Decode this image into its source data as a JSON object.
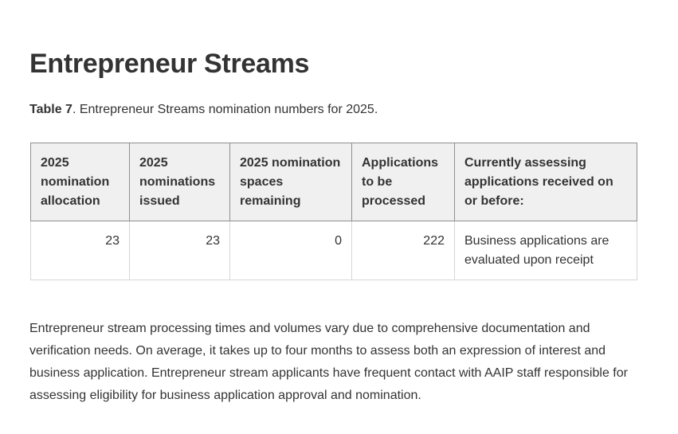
{
  "section": {
    "title": "Entrepreneur Streams",
    "caption_label": "Table 7",
    "caption_text": ". Entrepreneur Streams nomination numbers for 2025."
  },
  "table": {
    "headers": [
      "2025 nomination allocation",
      "2025 nominations issued",
      "2025 nomination spaces remaining",
      "Applications to be processed",
      "Currently assessing applications received on or before:"
    ],
    "rows": [
      [
        "23",
        "23",
        "0",
        "222",
        "Business applications are evaluated upon receipt"
      ]
    ]
  },
  "paragraph": "Entrepreneur stream processing times and volumes vary due to comprehensive documentation and verification needs. On average, it takes up to four months to assess both an expression of interest and business application. Entrepreneur stream applicants have frequent contact with AAIP staff responsible for assessing eligibility for business application approval and nomination.",
  "colors": {
    "text": "#333333",
    "header_bg": "#f0f0f0",
    "header_border": "#8f8f8f",
    "cell_border": "#d6d6d6"
  }
}
